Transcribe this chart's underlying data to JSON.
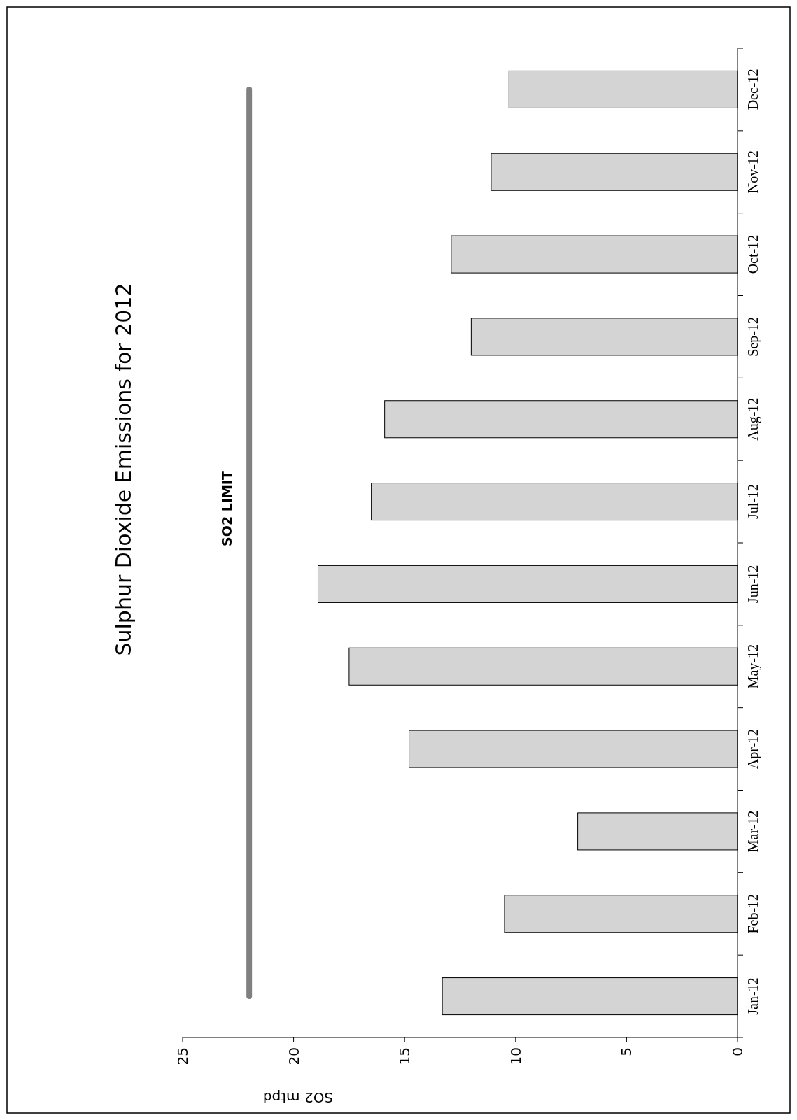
{
  "chart_data": {
    "type": "bar",
    "orientation": "horizontal",
    "title": "Sulphur Dioxide Emissions for 2012",
    "xlabel": "SO2 mtpd",
    "categories": [
      "Dec-12",
      "Nov-12",
      "Oct-12",
      "Sep-12",
      "Aug-12",
      "Jul-12",
      "Jun-12",
      "May-12",
      "Apr-12",
      "Mar-12",
      "Feb-12",
      "Jan-12"
    ],
    "values": [
      10.3,
      11.1,
      12.9,
      12.0,
      15.9,
      16.5,
      18.9,
      17.5,
      14.8,
      7.2,
      10.5,
      13.3
    ],
    "color": "#d4d4d4",
    "xlim": [
      25,
      0
    ],
    "xticks": [
      25,
      20,
      15,
      10,
      5,
      0
    ],
    "grid": false,
    "ref_lines": [
      {
        "axis": "x",
        "value": 22,
        "label": "SO2 LIMIT",
        "color": "#808080"
      }
    ]
  }
}
